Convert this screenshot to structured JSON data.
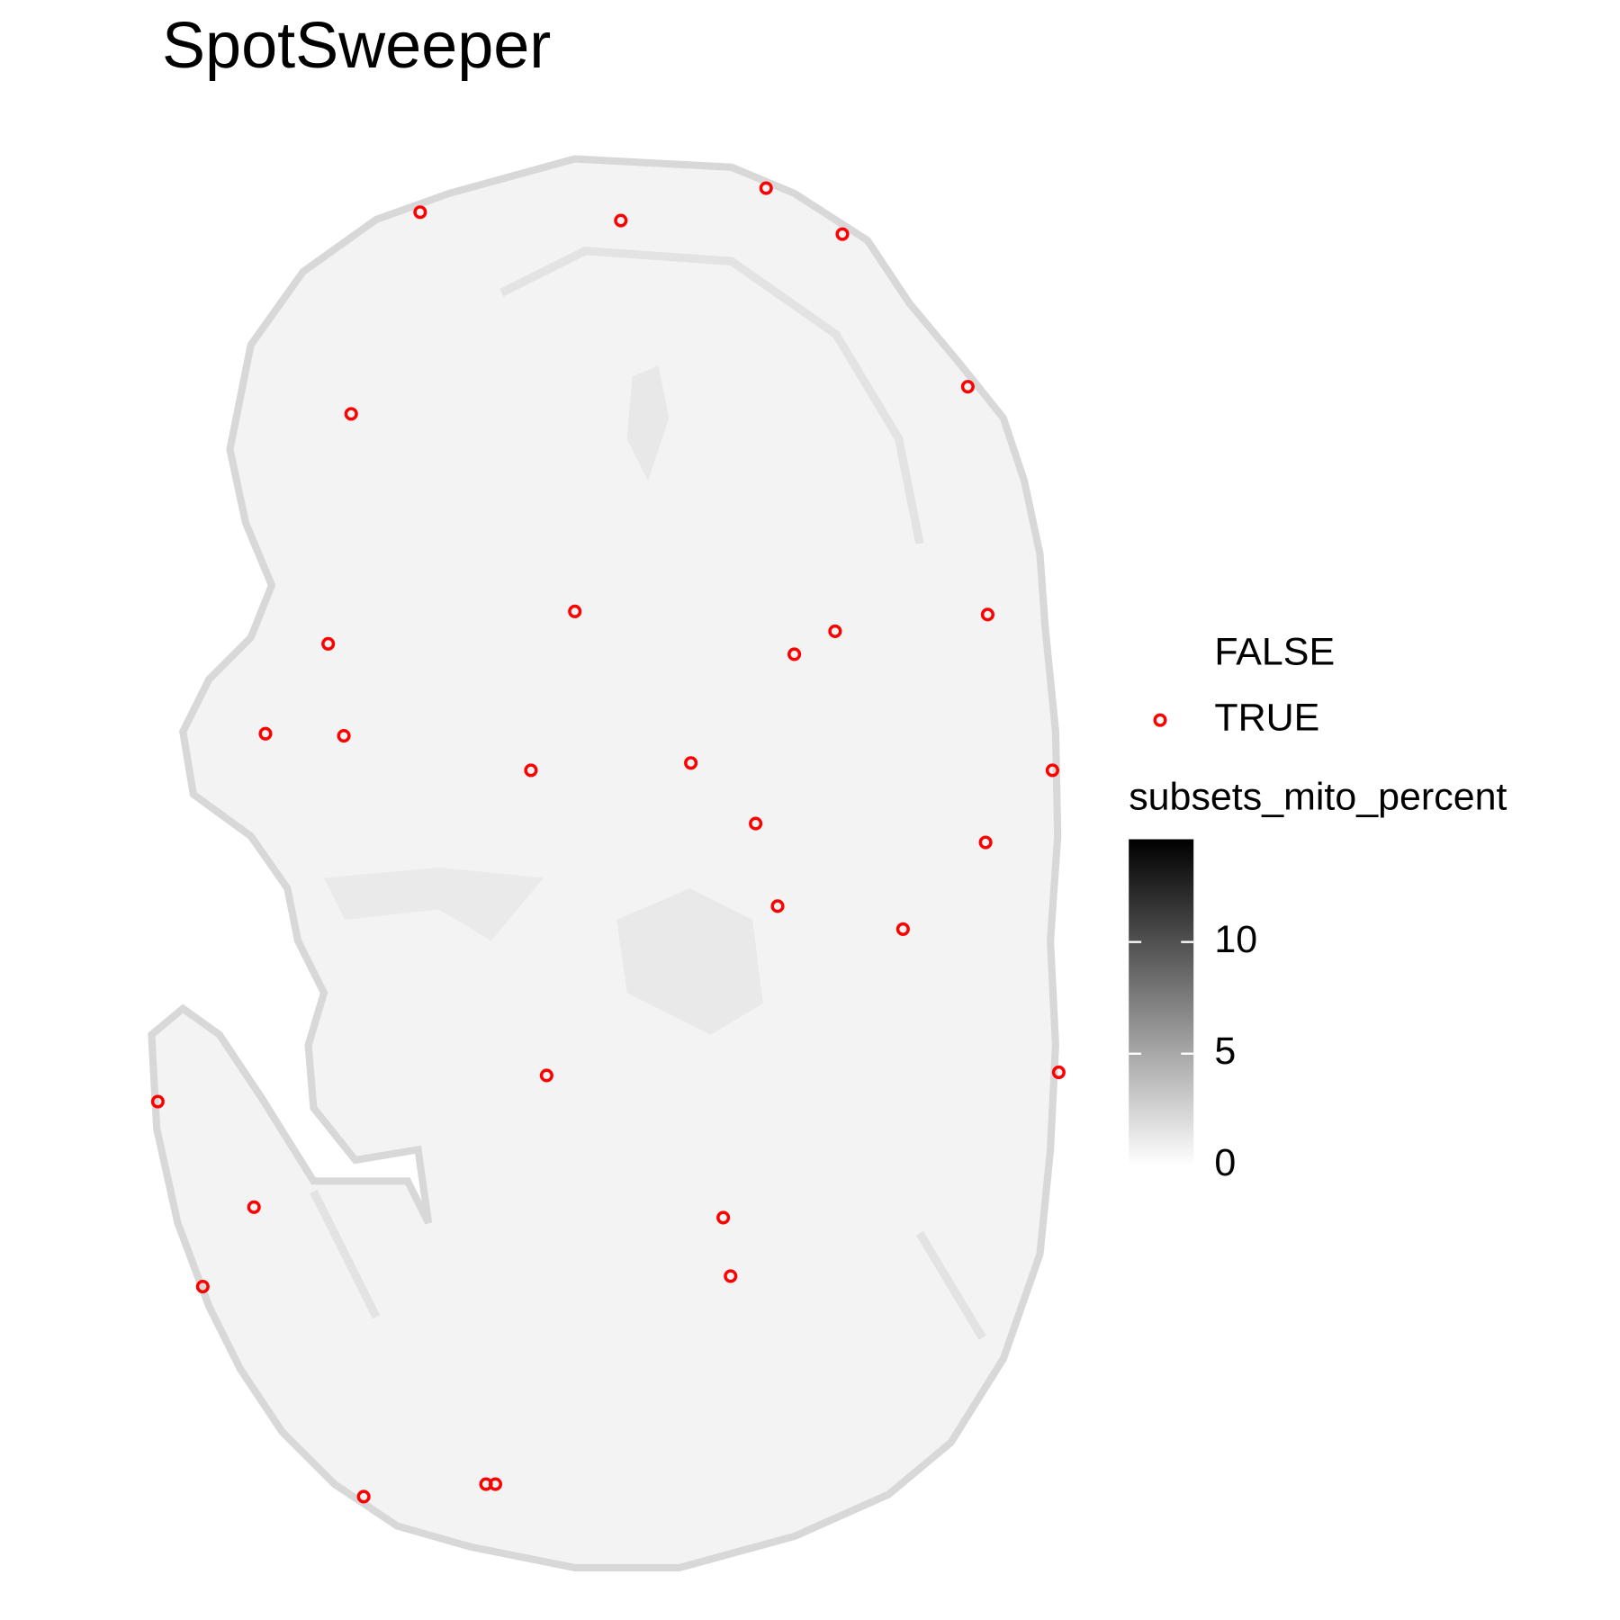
{
  "chart_data": {
    "type": "scatter",
    "title": "SpotSweeper",
    "xlim": [
      0,
      1550
    ],
    "ylim": [
      1550,
      0
    ],
    "series": [
      {
        "name": "FALSE",
        "color": "transparent",
        "x": [],
        "values": []
      },
      {
        "name": "TRUE",
        "color": "#ff0000",
        "x": [
          402,
          594,
          733,
          806,
          926,
          336,
          550,
          945,
          799,
          314,
          760,
          254,
          329,
          508,
          661,
          1007,
          723,
          943,
          744,
          864,
          523,
          1013,
          151,
          243,
          692,
          699,
          194,
          348,
          465,
          474
        ],
        "values": [
          203,
          211,
          180,
          224,
          370,
          396,
          585,
          588,
          604,
          616,
          626,
          702,
          704,
          737,
          730,
          737,
          788,
          806,
          867,
          889,
          1029,
          1026,
          1054,
          1155,
          1165,
          1221,
          1231,
          1432,
          1420,
          1420
        ]
      }
    ],
    "colorbar": {
      "title": "subsets_mito_percent",
      "lim": [
        0,
        14.6
      ],
      "ticks": [
        0,
        5,
        10
      ],
      "colors": [
        "#ffffff",
        "#000000"
      ]
    }
  }
}
